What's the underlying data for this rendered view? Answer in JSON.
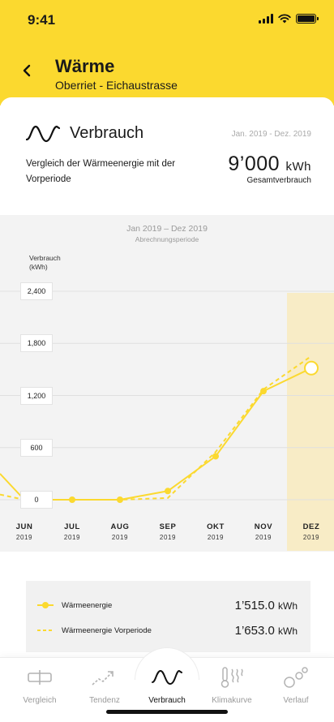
{
  "status_bar": {
    "time": "9:41"
  },
  "header": {
    "title": "Wärme",
    "subtitle": "Oberriet - Eichaustrasse"
  },
  "summary": {
    "section_title": "Verbrauch",
    "period": "Jan. 2019 - Dez. 2019",
    "description": "Vergleich der Wärmeenergie mit der Vorperiode",
    "total_value": "9’000",
    "total_unit": "kWh",
    "total_label": "Gesamtverbrauch"
  },
  "chart_data": {
    "type": "line",
    "title": "Jan 2019 – Dez 2019",
    "subtitle": "Abrechnungsperiode",
    "ylabel": "Verbrauch (kWh)",
    "ylabel_lines": [
      "Verbrauch",
      "(kWh)"
    ],
    "y_ticks": [
      "2,400",
      "1,800",
      "1,200",
      "600",
      "0"
    ],
    "y_tick_values": [
      2400,
      1800,
      1200,
      600,
      0
    ],
    "ylim": [
      0,
      2400
    ],
    "categories": [
      {
        "month": "JUN",
        "year": "2019"
      },
      {
        "month": "JUL",
        "year": "2019"
      },
      {
        "month": "AUG",
        "year": "2019"
      },
      {
        "month": "SEP",
        "year": "2019"
      },
      {
        "month": "OKT",
        "year": "2019"
      },
      {
        "month": "NOV",
        "year": "2019"
      },
      {
        "month": "DEZ",
        "year": "2019"
      }
    ],
    "highlighted_category": "DEZ",
    "series": [
      {
        "name": "Wärmeenergie",
        "style": "solid",
        "values": [
          0,
          0,
          0,
          100,
          500,
          1250,
          1515
        ],
        "lead_in": 300
      },
      {
        "name": "Wärmeenergie Vorperiode",
        "style": "dashed",
        "values": [
          0,
          0,
          0,
          20,
          550,
          1270,
          1653
        ],
        "lead_in": 60
      }
    ],
    "grid": true,
    "colors": {
      "line": "#fbd92f",
      "highlight": "#f8ecc6",
      "background": "#f3f3f3"
    }
  },
  "legend": [
    {
      "label": "Wärmeenergie",
      "value": "1’515.0",
      "unit": "kWh"
    },
    {
      "label": "Wärmeenergie Vorperiode",
      "value": "1’653.0",
      "unit": "kWh"
    }
  ],
  "tabs": [
    {
      "label": "Vergleich",
      "icon": "comparison-icon",
      "active": false
    },
    {
      "label": "Tendenz",
      "icon": "trend-icon",
      "active": false
    },
    {
      "label": "Verbrauch",
      "icon": "consumption-wave-icon",
      "active": true
    },
    {
      "label": "Klimakurve",
      "icon": "thermometer-heat-icon",
      "active": false
    },
    {
      "label": "Verlauf",
      "icon": "bubbles-icon",
      "active": false
    }
  ],
  "colors": {
    "accent": "#fbd92f",
    "text": "#1a1a1a",
    "muted": "#9a9a9a"
  }
}
